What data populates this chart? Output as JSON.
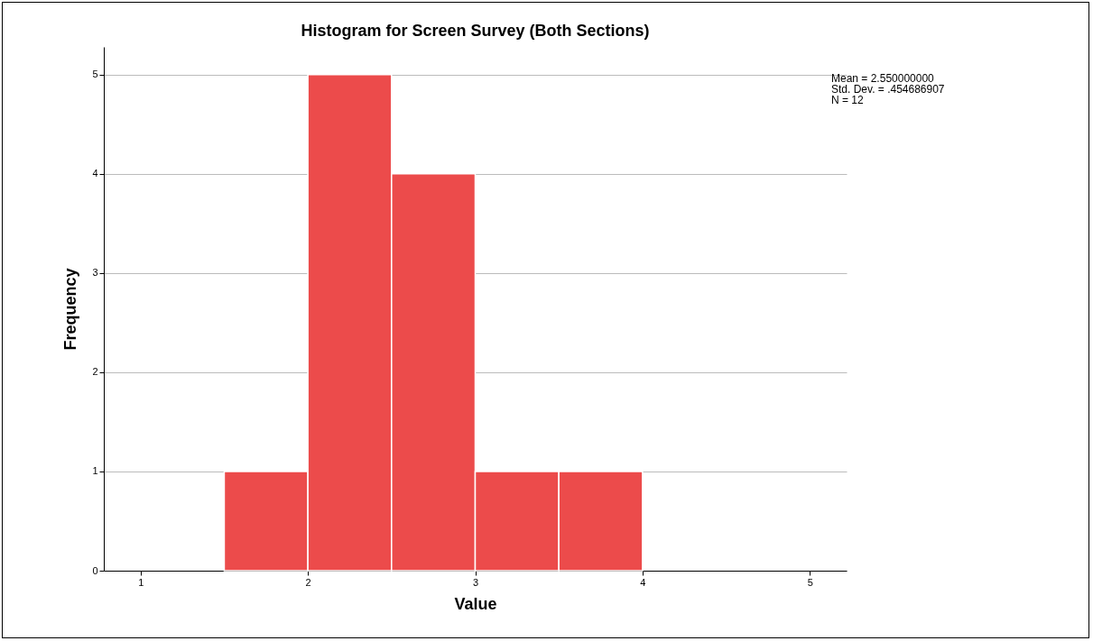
{
  "chart_data": {
    "type": "histogram",
    "title": "Histogram for Screen Survey (Both Sections)",
    "xlabel": "Value",
    "ylabel": "Frequency",
    "bins": [
      1.5,
      2,
      2.5,
      3,
      3.5,
      4
    ],
    "values": [
      1,
      5,
      4,
      1,
      1
    ],
    "color": "#ec4b4b",
    "xlim": [
      0.78,
      5.22
    ],
    "xticks": [
      1,
      2,
      3,
      4,
      5
    ],
    "ylim": [
      0,
      5.28
    ],
    "yticks": [
      0,
      1,
      2,
      3,
      4,
      5
    ],
    "grid": "y",
    "annotations": [
      "Mean = 2.550000000",
      "Std. Dev. = .454686907",
      "N = 12"
    ]
  }
}
